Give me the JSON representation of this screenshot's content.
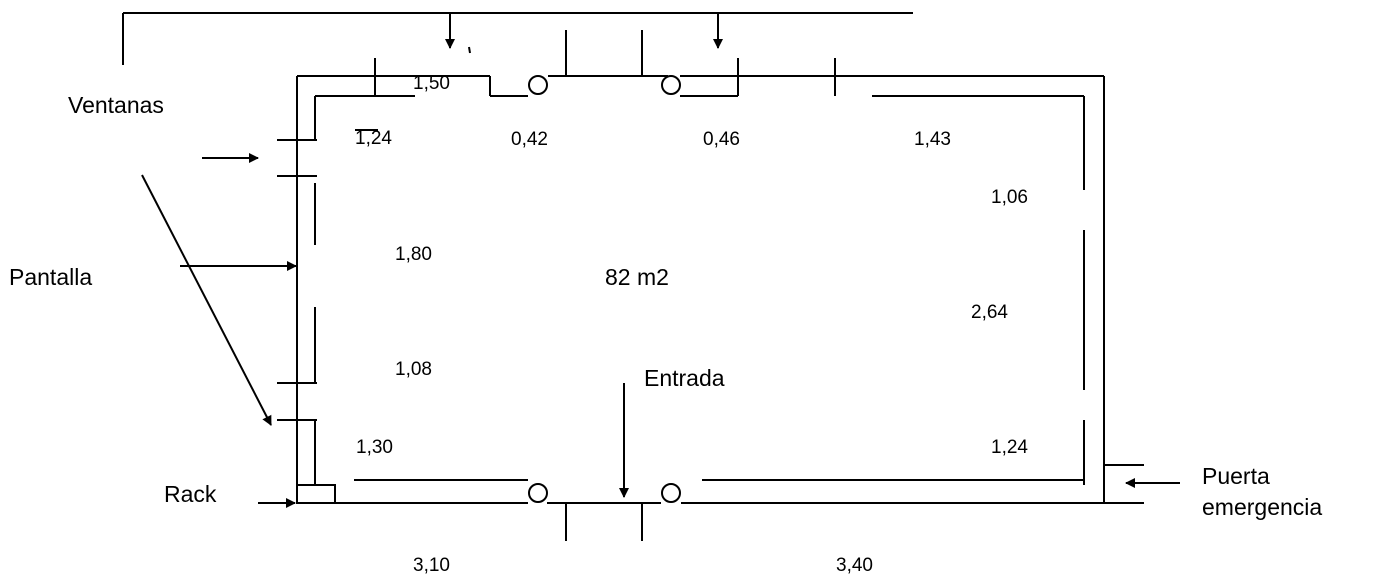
{
  "labels": {
    "windows": "Ventanas",
    "screen": "Pantalla",
    "rack": "Rack",
    "entrance": "Entrada",
    "emergency_door_line1": "Puerta",
    "emergency_door_line2": "emergencia",
    "area": "82 m2"
  },
  "measurements": {
    "top_left_window": "1,50",
    "top_left_inner": "1,24",
    "top_mid_1": "0,42",
    "top_mid_2": "0,46",
    "top_right": "1,43",
    "right_upper": "1,06",
    "left_upper": "1,80",
    "right_mid": "2,64",
    "left_lower": "1,08",
    "bottom_left_inner": "1,30",
    "bottom_right_inner": "1,24",
    "bottom_left": "3,10",
    "bottom_right": "3,40"
  }
}
